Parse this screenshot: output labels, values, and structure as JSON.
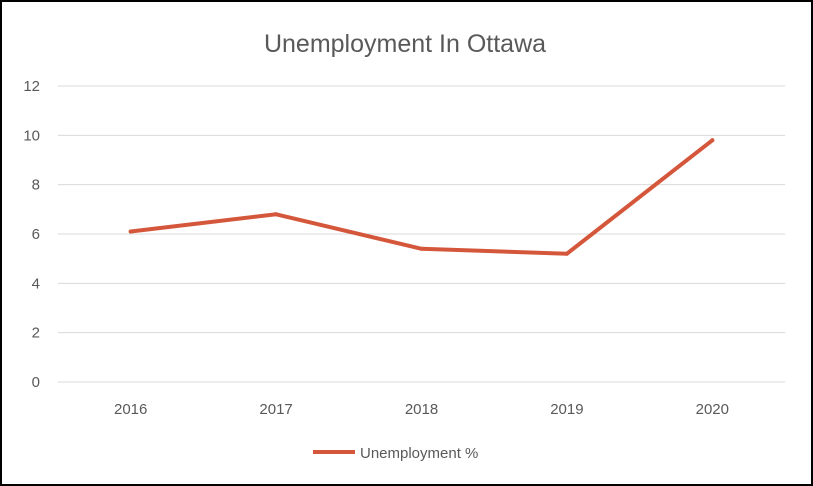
{
  "chart_data": {
    "type": "line",
    "title": "Unemployment In Ottawa",
    "xlabel": "",
    "ylabel": "",
    "categories": [
      "2016",
      "2017",
      "2018",
      "2019",
      "2020"
    ],
    "series": [
      {
        "name": "Unemployment %",
        "values": [
          6.1,
          6.8,
          5.4,
          5.2,
          9.8
        ],
        "color": "#d5573b"
      }
    ],
    "ylim": [
      0,
      12
    ],
    "yticks": [
      "0",
      "2",
      "4",
      "6",
      "8",
      "10",
      "12"
    ],
    "grid": true,
    "legend": "bottom"
  }
}
